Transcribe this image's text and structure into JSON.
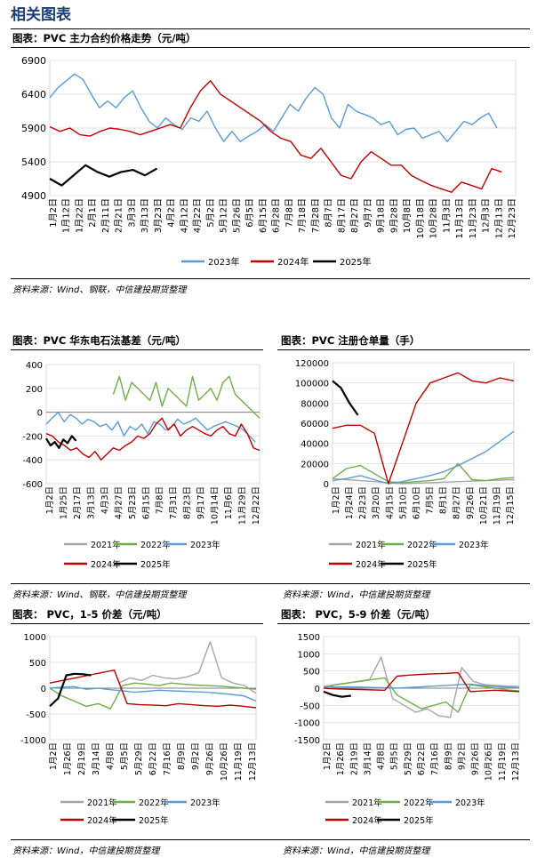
{
  "page": {
    "section_title": "相关图表"
  },
  "colors": {
    "y2021": "#a6a6a6",
    "y2022": "#70ad47",
    "y2023": "#5b9bd5",
    "y2024": "#c00000",
    "y2025": "#000000"
  },
  "charts": {
    "main": {
      "title": "图表：PVC 主力合约价格走势（元/吨）",
      "source": "资料来源：Wind、钢联，中信建投期货整理",
      "chart_data": {
        "type": "line",
        "yticks": [
          "6900",
          "6400",
          "5900",
          "5400",
          "4900"
        ],
        "ylim": [
          4900,
          6900
        ],
        "xticks": [
          "1月2日",
          "1月12日",
          "1月22日",
          "2月1日",
          "2月11日",
          "2月21日",
          "3月3日",
          "3月13日",
          "3月23日",
          "4月2日",
          "4月12日",
          "4月22日",
          "5月2日",
          "5月12日",
          "5月26日",
          "6月5日",
          "6月15日",
          "6月28日",
          "7月8日",
          "7月18日",
          "7月28日",
          "8月7日",
          "8月17日",
          "8月27日",
          "9月7日",
          "9月18日",
          "9月28日",
          "10月8日",
          "10月18日",
          "10月28日",
          "11月3日",
          "11月13日",
          "11月23日",
          "12月3日",
          "12月13日",
          "12月23日"
        ],
        "series": [
          {
            "name": "2023年",
            "color_key": "y2023",
            "values": [
              6350,
              6500,
              6600,
              6700,
              6620,
              6400,
              6200,
              6300,
              6200,
              6350,
              6450,
              6200,
              6000,
              5900,
              6050,
              5950,
              5880,
              6050,
              6000,
              6150,
              5900,
              5700,
              5850,
              5700,
              5780,
              5850,
              5950,
              5850,
              6050,
              6250,
              6150,
              6350,
              6500,
              6400,
              6050,
              5900,
              6250,
              6150,
              6100,
              6050,
              5950,
              6000,
              5800,
              5880,
              5900,
              5750,
              5800,
              5850,
              5700,
              5850,
              6000,
              5950,
              6050,
              6120,
              5900
            ]
          },
          {
            "name": "2024年",
            "color_key": "y2024",
            "values": [
              5920,
              5850,
              5900,
              5800,
              5780,
              5850,
              5900,
              5880,
              5850,
              5800,
              5850,
              5900,
              5950,
              5900,
              6200,
              6450,
              6600,
              6400,
              6300,
              6200,
              6100,
              6000,
              5850,
              5750,
              5700,
              5500,
              5450,
              5600,
              5400,
              5200,
              5150,
              5400,
              5550,
              5450,
              5350,
              5350,
              5200,
              5120,
              5050,
              5000,
              4950,
              5100,
              5050,
              5000,
              5300,
              5250
            ]
          },
          {
            "name": "2025年",
            "color_key": "y2025",
            "values": [
              5150,
              5050,
              5200,
              5350,
              5250,
              5180,
              5250,
              5280,
              5200,
              5300
            ]
          }
        ]
      }
    },
    "basis": {
      "title": "图表：PVC 华东电石法基差（元/吨）",
      "source": "资料来源：Wind、钢联，中信建投期货整理",
      "chart_data": {
        "type": "line",
        "yticks": [
          "400",
          "200",
          "0",
          "-200",
          "-400",
          "-600"
        ],
        "ylim": [
          -600,
          400
        ],
        "xticks": [
          "1月2日",
          "1月25日",
          "2月17日",
          "3月13日",
          "4月3日",
          "4月27日",
          "5月23日",
          "6月15日",
          "7月8日",
          "7月31日",
          "8月23日",
          "9月17日",
          "10月14日",
          "11月6日",
          "11月29日",
          "12月22日"
        ],
        "series": [
          {
            "name": "2021年",
            "color_key": "y2021",
            "values": []
          },
          {
            "name": "2022年",
            "color_key": "y2022",
            "values": [
              null,
              null,
              null,
              null,
              null,
              null,
              null,
              null,
              null,
              null,
              null,
              150,
              300,
              100,
              250,
              200,
              150,
              100,
              250,
              50,
              200,
              150,
              100,
              50,
              300,
              100,
              150,
              200,
              100,
              250,
              300,
              150,
              100,
              50,
              0,
              -50
            ]
          },
          {
            "name": "2023年",
            "color_key": "y2023",
            "values": [
              -100,
              -50,
              0,
              -80,
              -20,
              -50,
              -100,
              -60,
              -80,
              -120,
              -100,
              -150,
              -80,
              -200,
              -120,
              -150,
              -100,
              -180,
              -80,
              -100,
              -150,
              -120,
              -60,
              -100,
              -80,
              -50,
              -100,
              -150,
              -120,
              -100,
              -80,
              -100,
              -120,
              -150,
              -200,
              -250
            ]
          },
          {
            "name": "2024年",
            "color_key": "y2024",
            "values": [
              -180,
              -200,
              -250,
              -280,
              -320,
              -300,
              -350,
              -380,
              -330,
              -400,
              -350,
              -300,
              -320,
              -280,
              -250,
              -200,
              -220,
              -180,
              -100,
              -50,
              -150,
              -100,
              -200,
              -150,
              -120,
              -150,
              -180,
              -200,
              -150,
              -120,
              -180,
              -200,
              -100,
              -180,
              -300,
              -320
            ]
          },
          {
            "name": "2025年",
            "color_key": "y2025",
            "values": [
              -220,
              -280,
              -250,
              -300,
              -230,
              -260,
              -200,
              -240
            ]
          }
        ]
      }
    },
    "warehouse": {
      "title": "图表：PVC 注册仓单量（手）",
      "source": "资料来源：Wind，中信建投期货整理",
      "chart_data": {
        "type": "line",
        "yticks": [
          "120000",
          "100000",
          "80000",
          "60000",
          "40000",
          "20000",
          "0"
        ],
        "ylim": [
          0,
          120000
        ],
        "xticks": [
          "1月2日",
          "1月24日",
          "2月23日",
          "3月20日",
          "4月15日",
          "5月10日",
          "6月10日",
          "7月5日",
          "8月1日",
          "8月27日",
          "9月26日",
          "10月21日",
          "11月19日",
          "12月15日"
        ],
        "series": [
          {
            "name": "2021年",
            "color_key": "y2021",
            "values": [
              5000,
              4000,
              3000,
              2000,
              1000,
              0,
              500,
              1000,
              1500,
              2000,
              2500,
              3000,
              3500,
              4000
            ]
          },
          {
            "name": "2022年",
            "color_key": "y2022",
            "values": [
              5000,
              15000,
              18000,
              10000,
              2000,
              1000,
              2000,
              3000,
              5000,
              20000,
              4000,
              3000,
              5000,
              6000
            ]
          },
          {
            "name": "2023年",
            "color_key": "y2023",
            "values": [
              3000,
              5000,
              8000,
              4000,
              0,
              2000,
              5000,
              8000,
              12000,
              18000,
              25000,
              32000,
              42000,
              52000
            ]
          },
          {
            "name": "2024年",
            "color_key": "y2024",
            "values": [
              55000,
              58000,
              58000,
              50000,
              0,
              40000,
              80000,
              100000,
              105000,
              110000,
              102000,
              100000,
              105000,
              102000
            ]
          },
          {
            "name": "2025年",
            "color_key": "y2025",
            "values": [
              102000,
              95000,
              80000,
              68000
            ]
          }
        ]
      }
    },
    "spread15": {
      "title": "图表： PVC，1-5 价差（元/吨）",
      "source": "资料来源：Wind，中信建投期货整理",
      "chart_data": {
        "type": "line",
        "yticks": [
          "1000",
          "500",
          "0",
          "-500",
          "-1000"
        ],
        "ylim": [
          -1000,
          1000
        ],
        "xticks": [
          "1月2日",
          "1月26日",
          "2月19日",
          "3月14日",
          "4月8日",
          "5月5日",
          "5月29日",
          "6月22日",
          "7月16日",
          "8月9日",
          "9月2日",
          "9月26日",
          "10月26日",
          "11月19日",
          "12月13日"
        ],
        "series": [
          {
            "name": "2021年",
            "color_key": "y2021",
            "values": [
              null,
              null,
              null,
              null,
              null,
              null,
              100,
              200,
              150,
              250,
              200,
              180,
              220,
              300,
              900,
              200,
              100,
              50,
              -100
            ]
          },
          {
            "name": "2022年",
            "color_key": "y2022",
            "values": [
              0,
              -150,
              -250,
              -350,
              -300,
              -400,
              50,
              100,
              80,
              50,
              100,
              80,
              60,
              50,
              40,
              20,
              0,
              -20
            ]
          },
          {
            "name": "2023年",
            "color_key": "y2023",
            "values": [
              0,
              20,
              30,
              -20,
              0,
              -30,
              -50,
              -80,
              -60,
              -40,
              -50,
              -60,
              -70,
              -80,
              -100,
              -120,
              -150,
              -250
            ]
          },
          {
            "name": "2024年",
            "color_key": "y2024",
            "values": [
              100,
              150,
              200,
              250,
              300,
              350,
              -300,
              -320,
              -330,
              -340,
              -300,
              -320,
              -340,
              -350,
              -330,
              -350,
              -380
            ]
          },
          {
            "name": "2025年",
            "color_key": "y2025",
            "values": [
              -350,
              -200,
              250,
              280,
              270,
              250
            ]
          }
        ]
      }
    },
    "spread59": {
      "title": "图表： PVC，5-9 价差（元/吨）",
      "source": "资料来源：Wind，中信建投期货整理",
      "chart_data": {
        "type": "line",
        "yticks": [
          "1500",
          "1000",
          "500",
          "0",
          "-500",
          "-1000",
          "-1500"
        ],
        "ylim": [
          -1500,
          1500
        ],
        "xticks": [
          "1月2日",
          "1月26日",
          "2月19日",
          "3月14日",
          "4月8日",
          "5月5日",
          "5月29日",
          "6月22日",
          "7月16日",
          "8月9日",
          "9月2日",
          "9月26日",
          "10月26日",
          "11月19日",
          "12月13日"
        ],
        "series": [
          {
            "name": "2021年",
            "color_key": "y2021",
            "values": [
              50,
              100,
              150,
              200,
              250,
              900,
              -300,
              -500,
              -700,
              -600,
              -800,
              -850,
              600,
              200,
              100,
              80,
              60,
              50
            ]
          },
          {
            "name": "2022年",
            "color_key": "y2022",
            "values": [
              0,
              100,
              150,
              200,
              250,
              300,
              -200,
              -400,
              -600,
              -500,
              -400,
              -700,
              100,
              50,
              0,
              -50,
              -80
            ]
          },
          {
            "name": "2023年",
            "color_key": "y2023",
            "values": [
              50,
              30,
              40,
              30,
              20,
              10,
              0,
              20,
              40,
              60,
              80,
              100,
              120,
              80,
              50,
              30,
              10
            ]
          },
          {
            "name": "2024年",
            "color_key": "y2024",
            "values": [
              0,
              -20,
              -30,
              -40,
              -50,
              -60,
              350,
              380,
              400,
              420,
              430,
              450,
              -100,
              -80,
              -60,
              -80,
              -100
            ]
          },
          {
            "name": "2025年",
            "color_key": "y2025",
            "values": [
              -100,
              -200,
              -250,
              -220
            ]
          }
        ]
      }
    }
  }
}
